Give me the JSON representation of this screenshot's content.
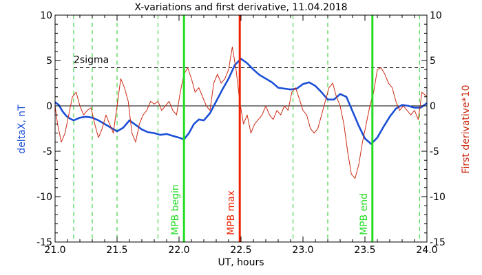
{
  "chart_data": {
    "type": "line",
    "title": "X-variations and first derivative, 11.04.2018",
    "xlabel": "UT, hours",
    "ylabel_left": "deltaX, nT",
    "ylabel_right": "First derivative*10",
    "xlim": [
      21.0,
      24.0
    ],
    "ylim": [
      -15,
      10
    ],
    "x_ticks": [
      21.0,
      21.5,
      22.0,
      22.5,
      23.0,
      23.5,
      24.0
    ],
    "x_tick_labels": [
      "21.0",
      "21.5",
      "22.0",
      "22.5",
      "23.0",
      "23.5",
      "24.0"
    ],
    "y_ticks": [
      10,
      5,
      0,
      -5,
      -10,
      -15
    ],
    "y_tick_labels": [
      "10",
      "5",
      "0",
      "-5",
      "-10",
      "-15"
    ],
    "sigma_label": "2sigma",
    "sigma_level": 4.2,
    "zero_level": 0,
    "colors": {
      "deltaX": "#1a4fd6",
      "derivative": "#cc2a12",
      "mpb_edge": "#22dd22",
      "mpb_max": "#ee2200",
      "dashed_green": "#22cc22",
      "axis": "#000000"
    },
    "green_dashed_x": [
      21.15,
      21.3,
      21.5,
      21.83,
      22.92,
      23.2,
      23.94
    ],
    "markers": [
      {
        "x": 22.04,
        "label": "MPB begin",
        "kind": "edge"
      },
      {
        "x": 22.49,
        "label": "MPB max",
        "kind": "max"
      },
      {
        "x": 23.56,
        "label": "MPB end",
        "kind": "edge"
      }
    ],
    "series": [
      {
        "name": "deltaX",
        "axis": "left",
        "x": [
          21.0,
          21.03,
          21.06,
          21.09,
          21.12,
          21.15,
          21.2,
          21.25,
          21.3,
          21.35,
          21.4,
          21.45,
          21.5,
          21.55,
          21.6,
          21.65,
          21.7,
          21.75,
          21.8,
          21.85,
          21.9,
          21.95,
          22.0,
          22.04,
          22.08,
          22.12,
          22.16,
          22.2,
          22.25,
          22.3,
          22.35,
          22.4,
          22.45,
          22.5,
          22.55,
          22.6,
          22.65,
          22.7,
          22.75,
          22.8,
          22.85,
          22.9,
          22.95,
          23.0,
          23.05,
          23.1,
          23.15,
          23.2,
          23.25,
          23.3,
          23.35,
          23.4,
          23.45,
          23.5,
          23.55,
          23.6,
          23.65,
          23.7,
          23.75,
          23.8,
          23.85,
          23.9,
          23.95,
          24.0
        ],
        "y": [
          0.4,
          0.1,
          -0.6,
          -1.1,
          -1.4,
          -1.6,
          -1.3,
          -1.2,
          -1.3,
          -1.6,
          -2.0,
          -2.4,
          -2.8,
          -2.4,
          -1.6,
          -2.1,
          -2.6,
          -2.9,
          -3.0,
          -3.2,
          -3.1,
          -3.3,
          -3.5,
          -3.7,
          -3.0,
          -2.0,
          -1.5,
          -1.6,
          -0.8,
          0.5,
          1.8,
          3.0,
          4.5,
          5.2,
          4.7,
          4.0,
          3.4,
          3.0,
          2.6,
          2.0,
          1.9,
          1.8,
          1.9,
          2.4,
          2.6,
          2.2,
          1.5,
          0.7,
          0.7,
          1.3,
          1.0,
          -0.6,
          -2.2,
          -3.6,
          -4.2,
          -3.5,
          -2.3,
          -1.2,
          -0.3,
          0.1,
          0.0,
          -0.2,
          -0.2,
          0.3
        ]
      },
      {
        "name": "derivative*10",
        "axis": "right",
        "x": [
          21.0,
          21.02,
          21.05,
          21.08,
          21.11,
          21.14,
          21.17,
          21.2,
          21.23,
          21.26,
          21.29,
          21.32,
          21.35,
          21.38,
          21.41,
          21.44,
          21.47,
          21.5,
          21.53,
          21.56,
          21.59,
          21.62,
          21.65,
          21.68,
          21.71,
          21.74,
          21.77,
          21.8,
          21.83,
          21.86,
          21.89,
          21.92,
          21.95,
          21.98,
          22.01,
          22.04,
          22.07,
          22.1,
          22.13,
          22.16,
          22.19,
          22.22,
          22.25,
          22.28,
          22.31,
          22.34,
          22.37,
          22.4,
          22.43,
          22.46,
          22.49,
          22.52,
          22.55,
          22.58,
          22.61,
          22.64,
          22.67,
          22.7,
          22.73,
          22.76,
          22.79,
          22.82,
          22.85,
          22.88,
          22.91,
          22.94,
          22.97,
          23.0,
          23.03,
          23.06,
          23.09,
          23.12,
          23.15,
          23.18,
          23.21,
          23.24,
          23.27,
          23.3,
          23.33,
          23.36,
          23.39,
          23.42,
          23.45,
          23.48,
          23.51,
          23.54,
          23.57,
          23.6,
          23.63,
          23.66,
          23.69,
          23.72,
          23.75,
          23.78,
          23.81,
          23.84,
          23.87,
          23.9,
          23.93,
          23.96,
          24.0
        ],
        "y": [
          0.0,
          -2.0,
          -4.0,
          -3.0,
          -1.0,
          1.0,
          1.5,
          0.0,
          -1.0,
          -0.5,
          -0.2,
          -2.0,
          -3.5,
          -2.5,
          -1.0,
          -2.0,
          -3.0,
          0.0,
          3.0,
          2.0,
          0.5,
          -3.0,
          -4.0,
          -2.0,
          -1.0,
          -0.5,
          0.5,
          0.2,
          0.5,
          -0.5,
          0.0,
          0.5,
          -0.5,
          -1.0,
          1.5,
          3.5,
          4.2,
          3.0,
          1.5,
          2.0,
          1.0,
          0.0,
          -0.5,
          2.5,
          3.5,
          2.5,
          3.0,
          4.0,
          6.5,
          4.0,
          0.5,
          -2.0,
          -1.0,
          -3.0,
          -2.0,
          -1.5,
          -1.0,
          0.0,
          -1.0,
          -1.5,
          -0.5,
          -1.0,
          0.0,
          -0.5,
          1.5,
          2.0,
          0.8,
          -0.5,
          -1.0,
          -2.5,
          -3.0,
          -2.5,
          -1.0,
          0.5,
          2.0,
          2.5,
          1.0,
          0.0,
          -2.0,
          -5.0,
          -7.5,
          -8.0,
          -6.5,
          -4.0,
          -2.0,
          0.0,
          1.5,
          4.0,
          4.2,
          3.5,
          2.5,
          2.0,
          0.5,
          -0.5,
          0.0,
          -0.5,
          -1.0,
          -0.5,
          -1.5,
          1.5,
          1.0
        ]
      }
    ]
  }
}
